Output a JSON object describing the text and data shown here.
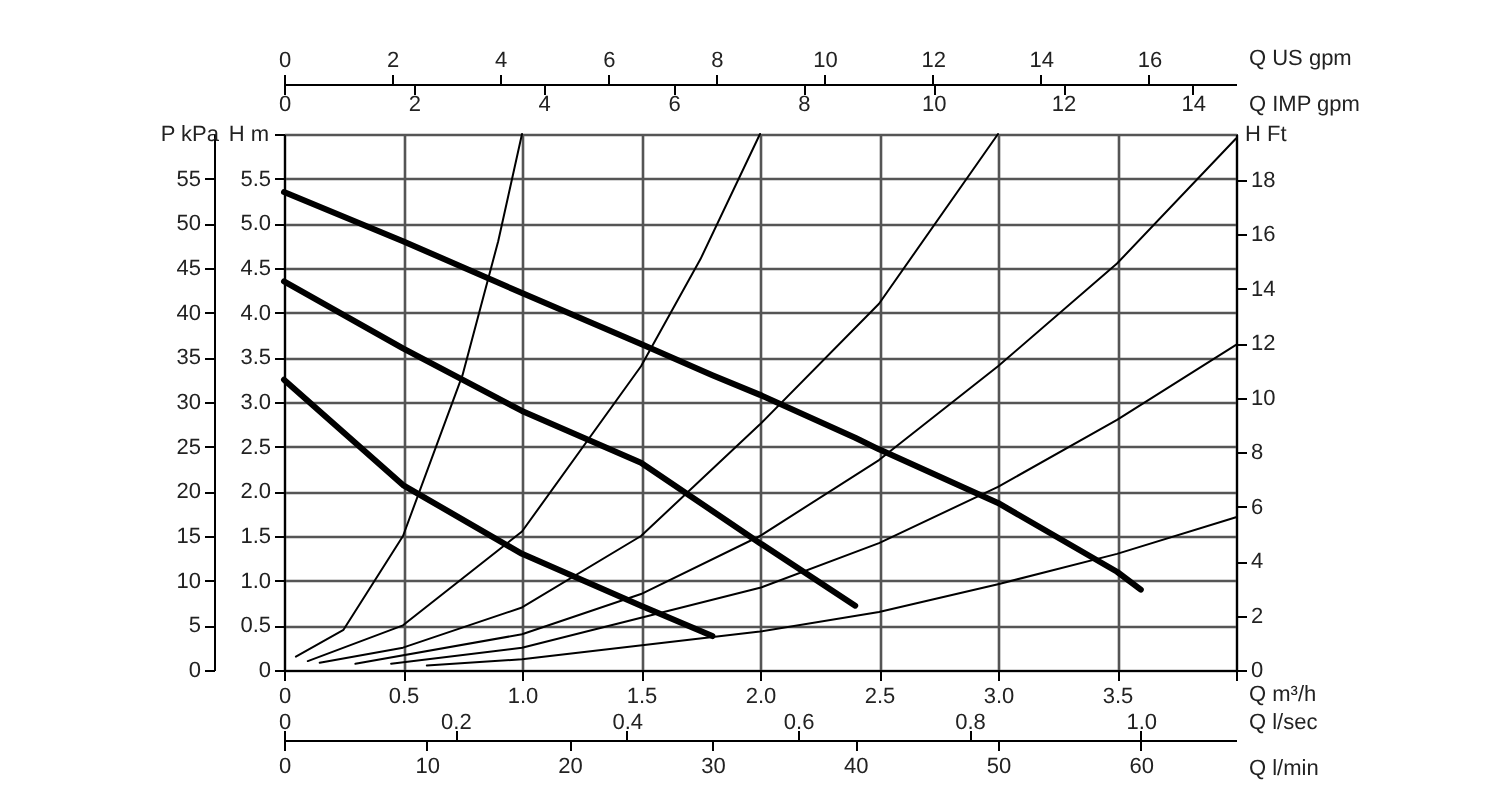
{
  "chart_data": {
    "type": "line",
    "xlabel": "Q m³/h",
    "ylabel": "H m",
    "y2label": "P kPa",
    "y3label": "H Ft",
    "x2label": "Q US gpm",
    "x": [
      0,
      0.5,
      1.0,
      1.5,
      1.8,
      2.0,
      2.4,
      2.5,
      3.0,
      3.5,
      3.6
    ],
    "series": [
      {
        "color": "#000000",
        "values": [
          5.35,
          4.8,
          4.22,
          3.65,
          3.3,
          3.08,
          2.6,
          2.47,
          1.87,
          1.1,
          0.9
        ]
      },
      {
        "color": "#000000",
        "values": [
          4.35,
          3.6,
          2.9,
          2.32,
          1.78,
          1.42,
          0.72,
          null,
          null,
          null,
          null
        ]
      },
      {
        "color": "#000000",
        "values": [
          3.25,
          2.07,
          1.3,
          0.72,
          0.38,
          null,
          null,
          null,
          null,
          null,
          null
        ]
      },
      {
        "color": "#000000",
        "x": [
          0.05,
          0.25,
          0.5,
          0.75,
          0.9,
          1.0
        ],
        "values": [
          0.15,
          0.45,
          1.5,
          3.3,
          4.8,
          6.0
        ]
      },
      {
        "color": "#000000",
        "x": [
          0.1,
          0.5,
          1.0,
          1.5,
          1.75,
          2.0
        ],
        "values": [
          0.1,
          0.5,
          1.55,
          3.4,
          4.6,
          6.0
        ]
      },
      {
        "color": "#000000",
        "x": [
          0.15,
          0.5,
          1.0,
          1.5,
          2.0,
          2.5,
          3.0
        ],
        "values": [
          0.08,
          0.25,
          0.7,
          1.5,
          2.75,
          4.1,
          6.0
        ]
      },
      {
        "color": "#000000",
        "x": [
          0.3,
          1.0,
          1.5,
          2.0,
          2.5,
          3.0,
          3.5,
          4.0
        ],
        "values": [
          0.07,
          0.4,
          0.85,
          1.5,
          2.35,
          3.4,
          4.55,
          5.95
        ]
      },
      {
        "color": "#000000",
        "x": [
          0.45,
          1.0,
          2.0,
          2.5,
          3.0,
          3.5,
          4.0
        ],
        "values": [
          0.07,
          0.25,
          0.92,
          1.42,
          2.05,
          2.8,
          3.64
        ]
      },
      {
        "color": "#000000",
        "x": [
          0.6,
          1.0,
          2.0,
          2.5,
          3.0,
          3.5,
          4.0
        ],
        "values": [
          0.05,
          0.12,
          0.43,
          0.65,
          0.96,
          1.3,
          1.71
        ]
      }
    ],
    "xlim": [
      0,
      4.0
    ],
    "xticks": [
      0,
      0.5,
      {
        "value": 1.0,
        "label": "1.0"
      },
      1.5,
      {
        "value": 2.0,
        "label": "2.0"
      },
      2.5,
      {
        "value": 3.0,
        "label": "3.0"
      },
      3.5,
      {
        "value": 4.0,
        "label": null
      }
    ],
    "ylim": [
      0,
      6.0
    ],
    "yticks": [
      0,
      0.5,
      {
        "value": 1.0,
        "label": "1.0"
      },
      1.5,
      {
        "value": 2.0,
        "label": "2.0"
      },
      2.5,
      {
        "value": 3.0,
        "label": "3.0"
      },
      3.5,
      {
        "value": 4.0,
        "label": "4.0"
      },
      4.5,
      {
        "value": 5.0,
        "label": "5.0"
      },
      5.5,
      {
        "value": 6.0,
        "label": null
      }
    ],
    "y2lim": [
      0,
      60
    ],
    "y2ticks": [
      0,
      5,
      10,
      15,
      20,
      25,
      30,
      35,
      40,
      45,
      50,
      55
    ],
    "y3lim": [
      0,
      19.69
    ],
    "y3ticks": [
      0,
      2,
      4,
      6,
      8,
      10,
      12,
      14,
      16,
      18
    ],
    "x2lim": [
      0,
      17.61
    ],
    "x2ticks": [
      0,
      2,
      4,
      6,
      8,
      10,
      12,
      14,
      16
    ],
    "annotations": [
      "Q IMP gpm",
      "0",
      "2",
      "4",
      "6",
      "8",
      "10",
      "12",
      "14",
      "Q l/sec",
      "0",
      "0.2",
      "0.4",
      "0.6",
      "0.8",
      "1.0",
      "Q l/min",
      "0",
      "10",
      "20",
      "30",
      "40",
      "50",
      "60"
    ],
    "grid": true
  }
}
